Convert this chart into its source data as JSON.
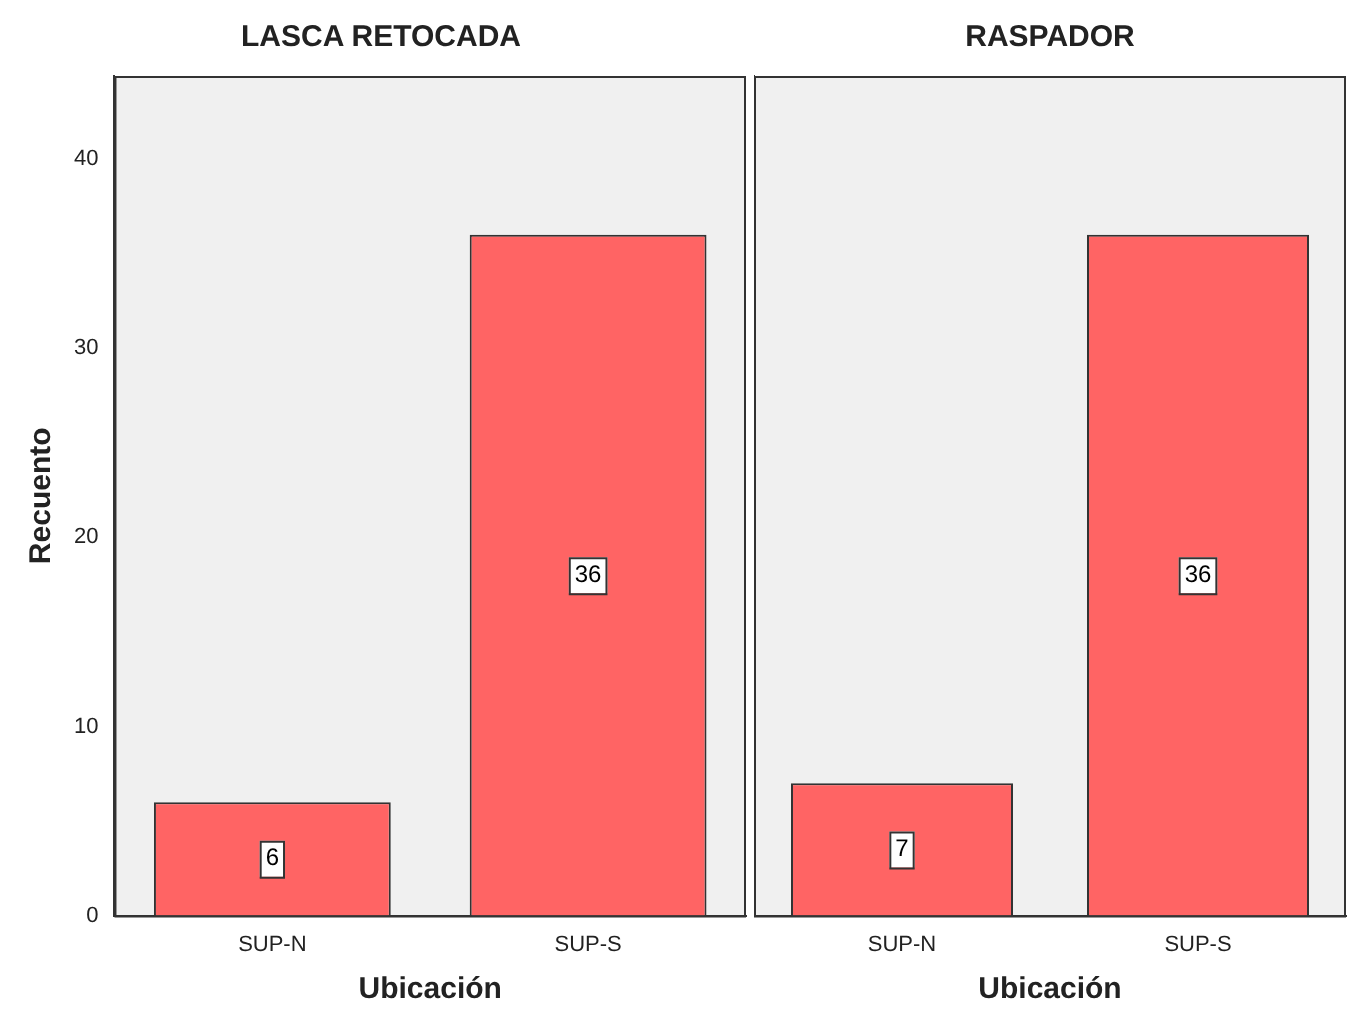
{
  "chart_data": [
    {
      "type": "bar",
      "title": "LASCA RETOCADA",
      "xlabel": "Ubicación",
      "ylabel": "Recuento",
      "categories": [
        "SUP-N",
        "SUP-S"
      ],
      "values": [
        6,
        36
      ],
      "color": "#ff6464",
      "ylim": [
        0,
        44.4
      ],
      "yticks": [
        0,
        10,
        20,
        30,
        40
      ],
      "grid": false,
      "legend": false,
      "data_labels": true
    },
    {
      "type": "bar",
      "title": "RASPADOR",
      "xlabel": "Ubicación",
      "categories": [
        "SUP-N",
        "SUP-S"
      ],
      "values": [
        7,
        36
      ],
      "color": "#ff6464",
      "ylim": [
        0,
        44.4
      ],
      "yticks": [
        0,
        10,
        20,
        30,
        40
      ],
      "grid": false,
      "legend": false,
      "data_labels": true,
      "tick_labels": "x"
    }
  ]
}
